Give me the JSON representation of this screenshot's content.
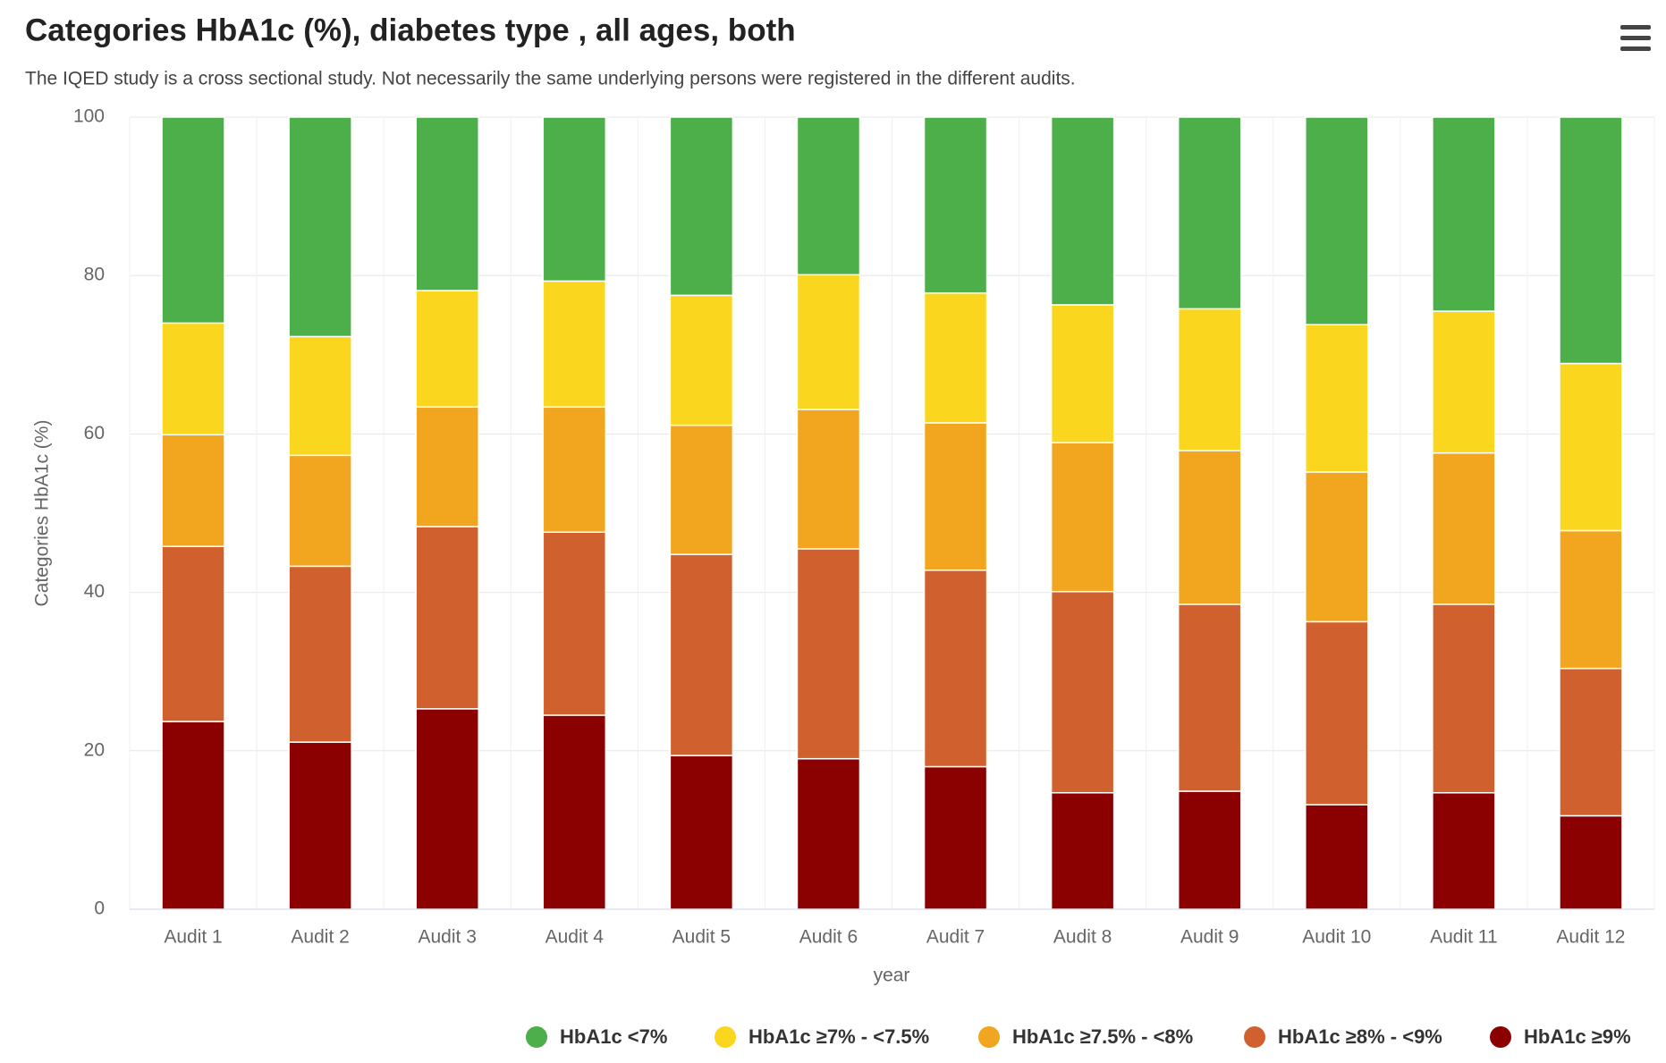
{
  "chart_data": {
    "type": "stacked_bar",
    "title": "Categories HbA1c (%), diabetes type , all ages, both",
    "subtitle": "The IQED study is a cross sectional study. Not necessarily the same underlying persons were registered in the different audits.",
    "x_label": "year",
    "y_label": "Categories HbA1c (%)",
    "categories": [
      "Audit 1",
      "Audit 2",
      "Audit 3",
      "Audit 4",
      "Audit 5",
      "Audit 6",
      "Audit 7",
      "Audit 8",
      "Audit 9",
      "Audit 10",
      "Audit 11",
      "Audit 12"
    ],
    "series": [
      {
        "name": "HbA1c <7%",
        "color": "#4daf4a",
        "values": [
          26.0,
          27.7,
          21.9,
          20.7,
          22.5,
          19.9,
          22.2,
          23.7,
          24.2,
          26.2,
          24.5,
          31.1
        ]
      },
      {
        "name": "HbA1c ≥7% - <7.5%",
        "color": "#fad61e",
        "values": [
          14.1,
          15.0,
          14.7,
          15.9,
          16.4,
          17.0,
          16.4,
          17.4,
          17.9,
          18.6,
          17.9,
          21.1
        ]
      },
      {
        "name": "HbA1c ≥7.5% - <8%",
        "color": "#f2a51e",
        "values": [
          14.1,
          14.0,
          15.1,
          15.8,
          16.3,
          17.6,
          18.6,
          18.8,
          19.4,
          18.9,
          19.1,
          17.4
        ]
      },
      {
        "name": "HbA1c ≥8% - <9%",
        "color": "#d0612f",
        "values": [
          22.1,
          22.2,
          23.0,
          23.1,
          25.4,
          26.5,
          24.8,
          25.4,
          23.6,
          23.1,
          23.8,
          18.6
        ]
      },
      {
        "name": "HbA1c ≥9%",
        "color": "#8b0000",
        "values": [
          23.7,
          21.1,
          25.3,
          24.5,
          19.4,
          19.0,
          18.0,
          14.7,
          14.9,
          13.2,
          14.7,
          11.8
        ]
      }
    ],
    "ylim": [
      0,
      100
    ],
    "yticks": [
      0,
      20,
      40,
      60,
      80,
      100
    ],
    "grid": true
  }
}
